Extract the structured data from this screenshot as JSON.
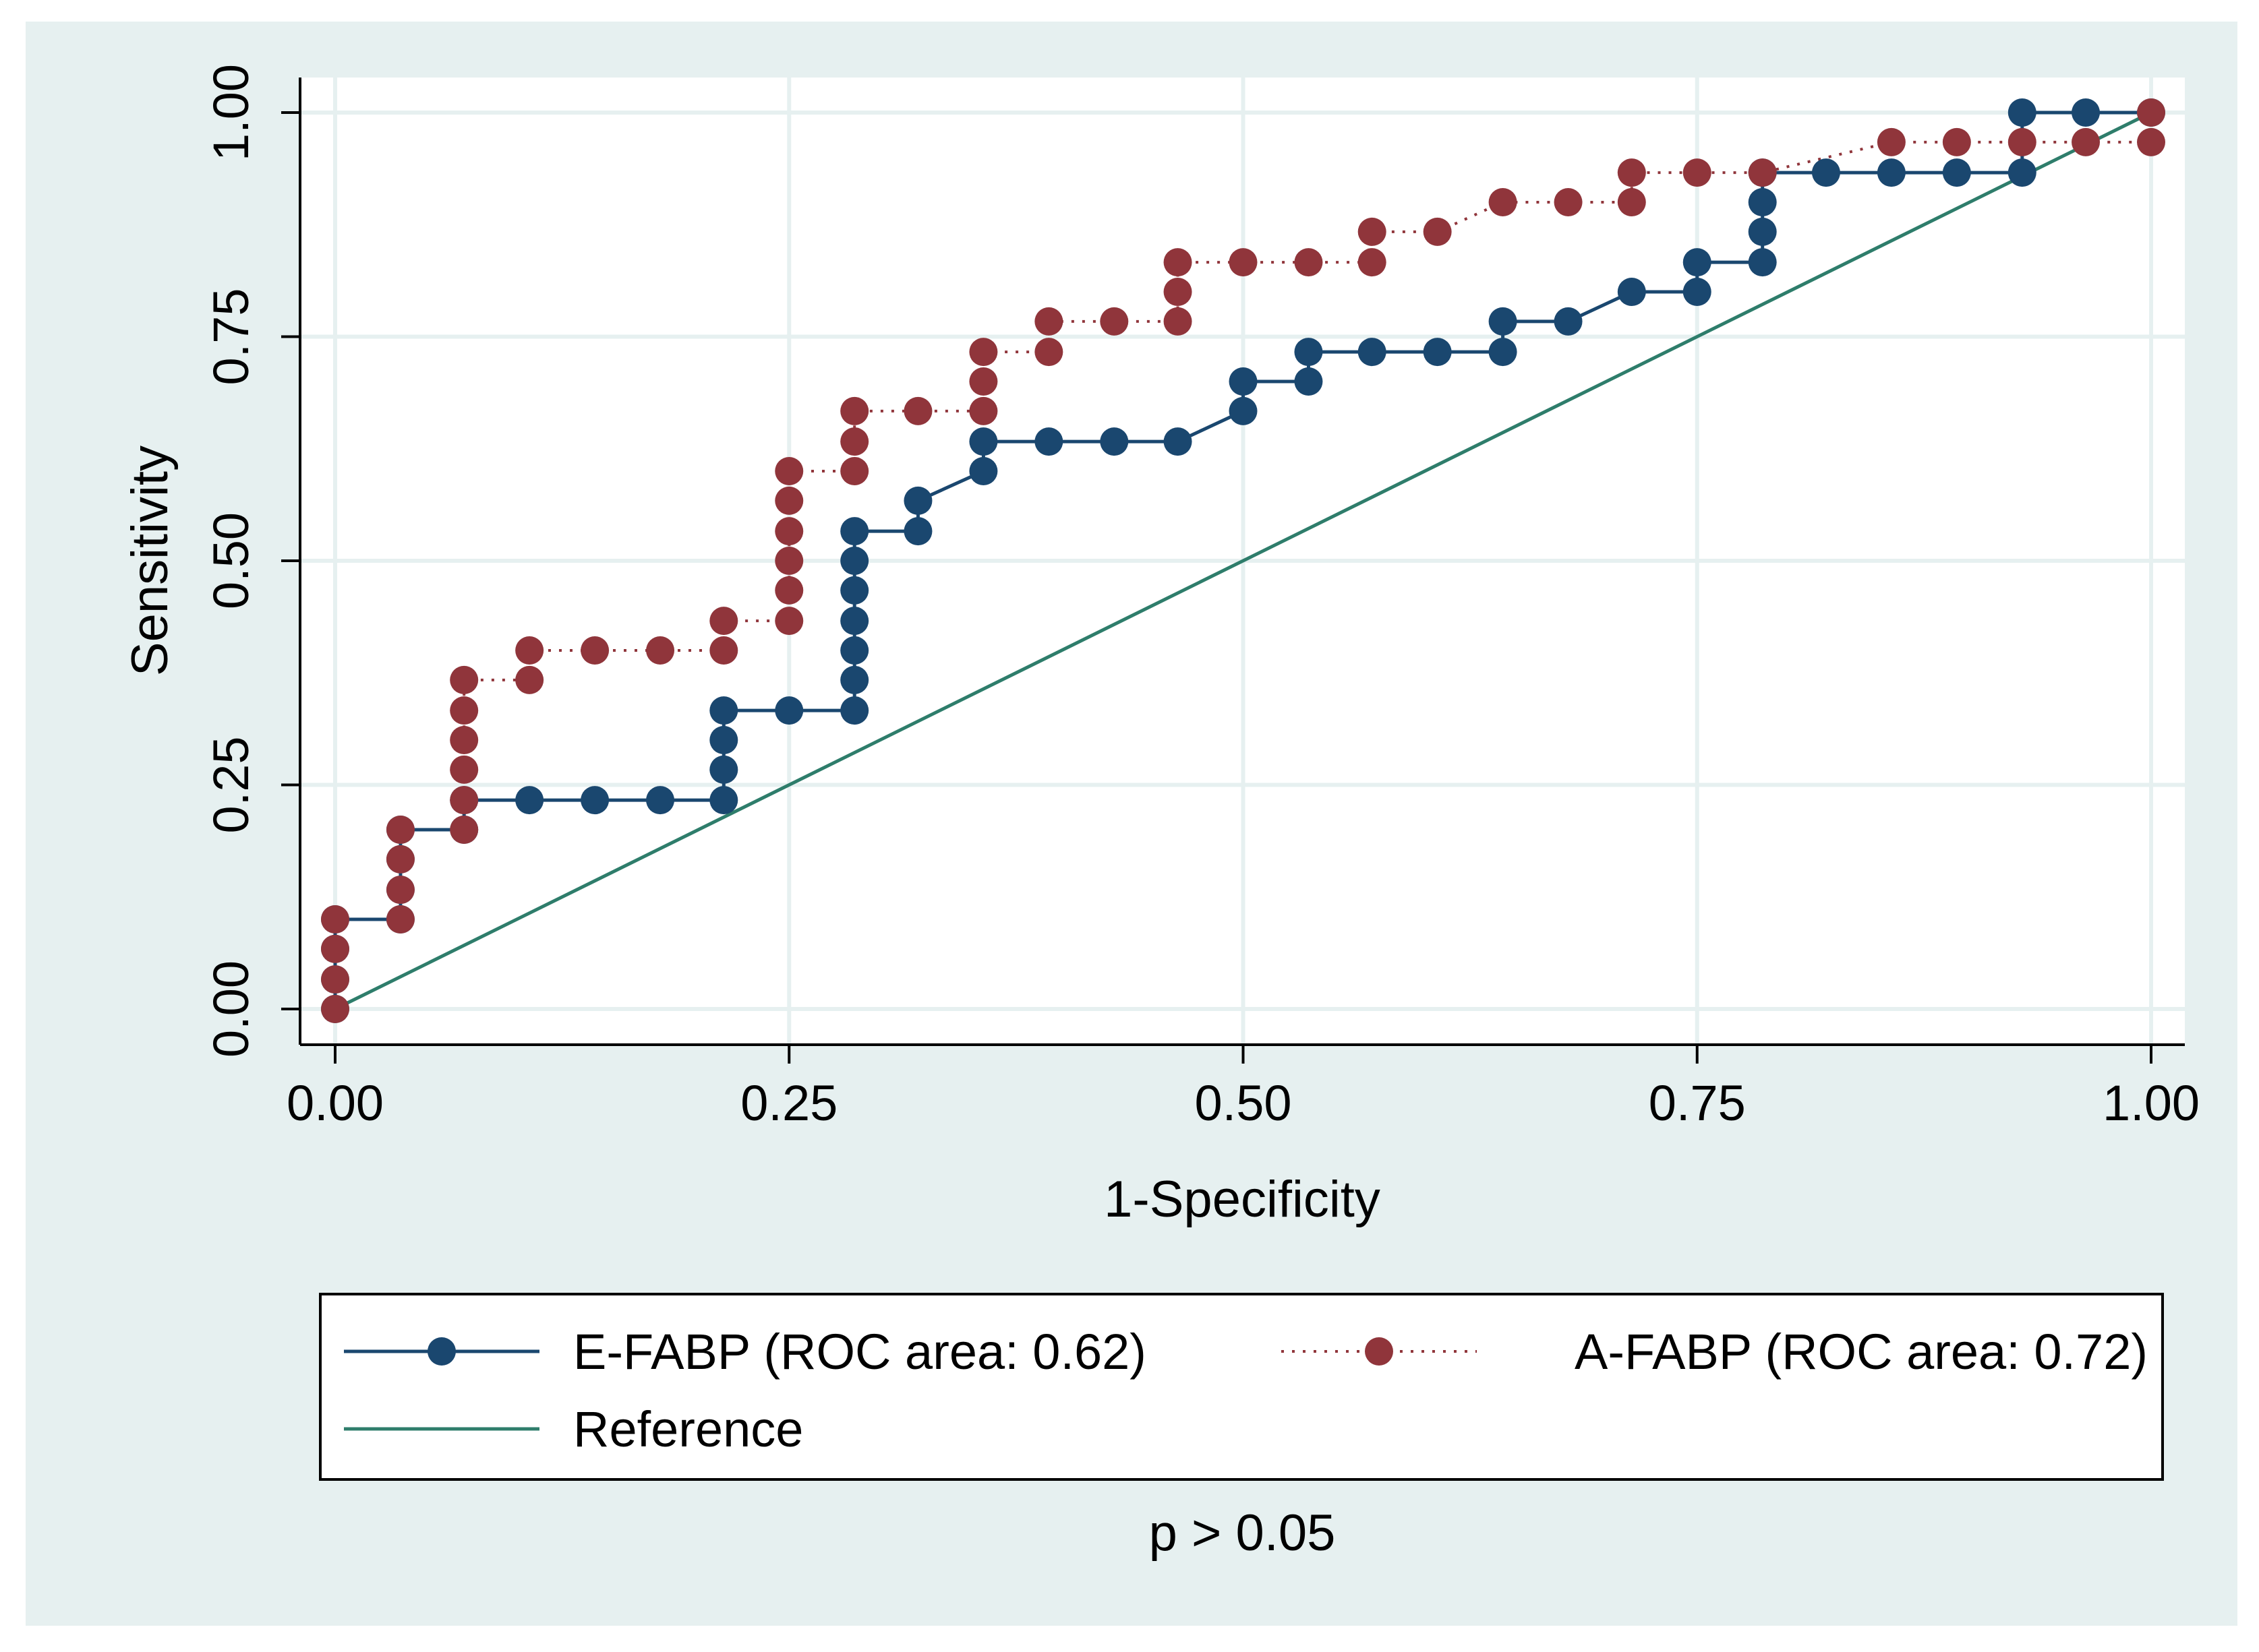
{
  "chart_data": {
    "type": "line",
    "title": "",
    "xlabel": "1-Specificity",
    "ylabel": "Sensitivity",
    "xlim": [
      0,
      1
    ],
    "ylim": [
      0,
      1
    ],
    "xticks": [
      "0.00",
      "0.25",
      "0.50",
      "0.75",
      "1.00"
    ],
    "yticks": [
      "0.00",
      "0.25",
      "0.50",
      "0.75",
      "1.00"
    ],
    "grid": true,
    "legend_position": "bottom",
    "note": "p > 0.05",
    "colors": {
      "e_fabp": "#1a476f",
      "a_fabp": "#90353b",
      "reference": "#2e7d6b",
      "background": "#e6f0f0",
      "grid": "#e6f0f0"
    },
    "series": [
      {
        "name": "E-FABP (ROC area: 0.62)",
        "style": "solid",
        "points": [
          [
            0,
            0
          ],
          [
            0,
            0.033
          ],
          [
            0,
            0.067
          ],
          [
            0,
            0.1
          ],
          [
            0.036,
            0.1
          ],
          [
            0.036,
            0.133
          ],
          [
            0.036,
            0.167
          ],
          [
            0.036,
            0.2
          ],
          [
            0.071,
            0.2
          ],
          [
            0.071,
            0.233
          ],
          [
            0.107,
            0.233
          ],
          [
            0.143,
            0.233
          ],
          [
            0.179,
            0.233
          ],
          [
            0.214,
            0.233
          ],
          [
            0.214,
            0.267
          ],
          [
            0.214,
            0.3
          ],
          [
            0.214,
            0.333
          ],
          [
            0.25,
            0.333
          ],
          [
            0.286,
            0.333
          ],
          [
            0.286,
            0.367
          ],
          [
            0.286,
            0.4
          ],
          [
            0.286,
            0.433
          ],
          [
            0.286,
            0.467
          ],
          [
            0.286,
            0.5
          ],
          [
            0.286,
            0.533
          ],
          [
            0.321,
            0.533
          ],
          [
            0.321,
            0.567
          ],
          [
            0.357,
            0.6
          ],
          [
            0.357,
            0.633
          ],
          [
            0.393,
            0.633
          ],
          [
            0.429,
            0.633
          ],
          [
            0.464,
            0.633
          ],
          [
            0.5,
            0.667
          ],
          [
            0.5,
            0.7
          ],
          [
            0.536,
            0.7
          ],
          [
            0.536,
            0.733
          ],
          [
            0.571,
            0.733
          ],
          [
            0.607,
            0.733
          ],
          [
            0.643,
            0.733
          ],
          [
            0.643,
            0.767
          ],
          [
            0.679,
            0.767
          ],
          [
            0.714,
            0.8
          ],
          [
            0.75,
            0.8
          ],
          [
            0.75,
            0.833
          ],
          [
            0.786,
            0.833
          ],
          [
            0.786,
            0.867
          ],
          [
            0.786,
            0.9
          ],
          [
            0.786,
            0.933
          ],
          [
            0.821,
            0.933
          ],
          [
            0.857,
            0.933
          ],
          [
            0.893,
            0.933
          ],
          [
            0.929,
            0.933
          ],
          [
            0.929,
            1.0
          ],
          [
            0.964,
            1.0
          ],
          [
            1.0,
            1.0
          ]
        ]
      },
      {
        "name": "A-FABP (ROC area: 0.72)",
        "style": "dotted",
        "points": [
          [
            0,
            0
          ],
          [
            0,
            0.033
          ],
          [
            0,
            0.067
          ],
          [
            0,
            0.1
          ],
          [
            0.036,
            0.1
          ],
          [
            0.036,
            0.133
          ],
          [
            0.036,
            0.167
          ],
          [
            0.036,
            0.2
          ],
          [
            0.071,
            0.2
          ],
          [
            0.071,
            0.233
          ],
          [
            0.071,
            0.267
          ],
          [
            0.071,
            0.3
          ],
          [
            0.071,
            0.333
          ],
          [
            0.071,
            0.367
          ],
          [
            0.107,
            0.367
          ],
          [
            0.107,
            0.4
          ],
          [
            0.143,
            0.4
          ],
          [
            0.179,
            0.4
          ],
          [
            0.214,
            0.4
          ],
          [
            0.214,
            0.433
          ],
          [
            0.25,
            0.433
          ],
          [
            0.25,
            0.467
          ],
          [
            0.25,
            0.5
          ],
          [
            0.25,
            0.533
          ],
          [
            0.25,
            0.567
          ],
          [
            0.25,
            0.6
          ],
          [
            0.286,
            0.6
          ],
          [
            0.286,
            0.633
          ],
          [
            0.286,
            0.667
          ],
          [
            0.321,
            0.667
          ],
          [
            0.357,
            0.667
          ],
          [
            0.357,
            0.7
          ],
          [
            0.357,
            0.733
          ],
          [
            0.393,
            0.733
          ],
          [
            0.393,
            0.767
          ],
          [
            0.429,
            0.767
          ],
          [
            0.464,
            0.767
          ],
          [
            0.464,
            0.8
          ],
          [
            0.464,
            0.833
          ],
          [
            0.5,
            0.833
          ],
          [
            0.536,
            0.833
          ],
          [
            0.571,
            0.833
          ],
          [
            0.571,
            0.867
          ],
          [
            0.607,
            0.867
          ],
          [
            0.643,
            0.9
          ],
          [
            0.679,
            0.9
          ],
          [
            0.714,
            0.9
          ],
          [
            0.714,
            0.933
          ],
          [
            0.75,
            0.933
          ],
          [
            0.786,
            0.933
          ],
          [
            0.857,
            0.967
          ],
          [
            0.893,
            0.967
          ],
          [
            0.929,
            0.967
          ],
          [
            0.964,
            0.967
          ],
          [
            1.0,
            0.967
          ],
          [
            1.0,
            1.0
          ]
        ]
      },
      {
        "name": "Reference",
        "style": "solid-line",
        "points": [
          [
            0,
            0
          ],
          [
            1,
            1
          ]
        ]
      }
    ]
  }
}
